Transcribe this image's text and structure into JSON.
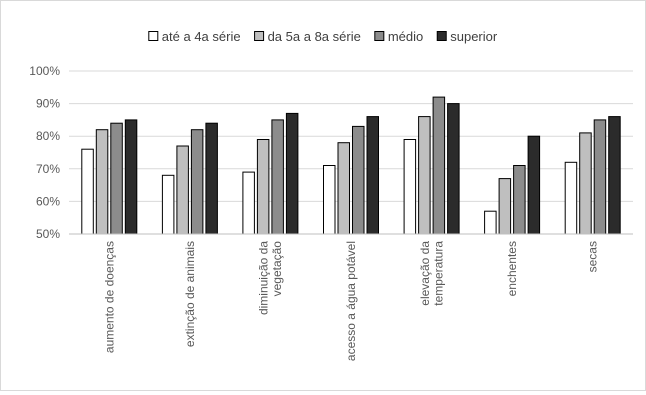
{
  "chart_data": {
    "type": "bar",
    "title": "",
    "xlabel": "",
    "ylabel": "",
    "categories": [
      [
        "aumento de doenças"
      ],
      [
        "extinção de animais"
      ],
      [
        "diminuição da",
        "vegetação"
      ],
      [
        "acesso a água potável"
      ],
      [
        "elevação da",
        "temperatura"
      ],
      [
        "enchentes"
      ],
      [
        "secas"
      ]
    ],
    "series": [
      {
        "name": "até a 4a série",
        "color": "#ffffff",
        "values": [
          76,
          68,
          69,
          71,
          79,
          57,
          72
        ]
      },
      {
        "name": "da 5a a 8a série",
        "color": "#bfbfbf",
        "values": [
          82,
          77,
          79,
          78,
          86,
          67,
          81
        ]
      },
      {
        "name": "médio",
        "color": "#8c8c8c",
        "values": [
          84,
          82,
          85,
          83,
          92,
          71,
          85
        ]
      },
      {
        "name": "superior",
        "color": "#2b2b2b",
        "values": [
          85,
          84,
          87,
          86,
          90,
          80,
          86
        ]
      }
    ],
    "ylim": [
      50,
      100
    ],
    "yticks": [
      50,
      60,
      70,
      80,
      90,
      100
    ],
    "ytick_format": "%",
    "grid": true,
    "legend_position": "top-center"
  }
}
